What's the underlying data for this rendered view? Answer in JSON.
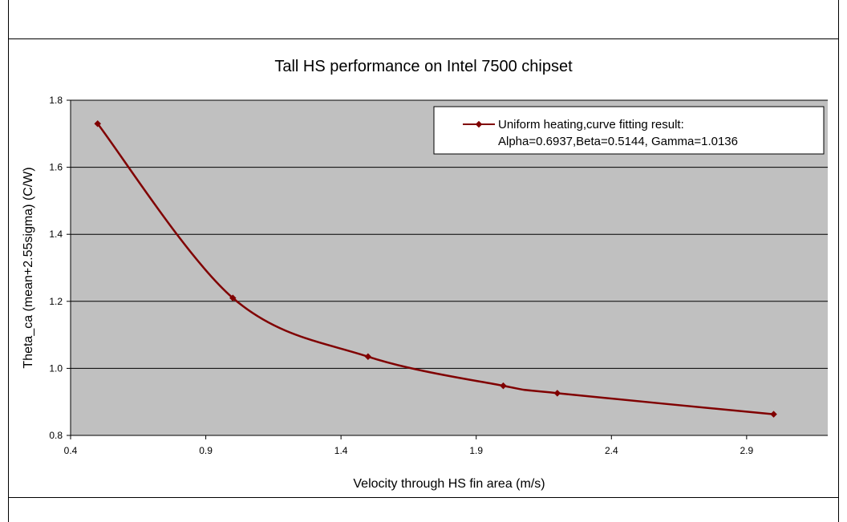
{
  "chart_data": {
    "type": "line",
    "title": "Tall HS performance on Intel 7500 chipset",
    "xlabel": "Velocity through HS fin area  (m/s)",
    "ylabel": "Theta_ca  (mean+2.55sigma) (C/W)",
    "xlim": [
      0.4,
      3.2
    ],
    "ylim": [
      0.8,
      1.8
    ],
    "x_ticks": [
      "0.4",
      "0.9",
      "1.4",
      "1.9",
      "2.4",
      "2.9"
    ],
    "y_ticks": [
      "0.8",
      "1.0",
      "1.2",
      "1.4",
      "1.6",
      "1.8"
    ],
    "grid": "horizontal",
    "legend_position": "top-right",
    "plot_background": "#c0c0c0",
    "series": [
      {
        "name": "Uniform heating,curve fitting result:",
        "name_line2": "Alpha=0.6937,Beta=0.5144, Gamma=1.0136",
        "color": "#800000",
        "x": [
          0.5,
          1.0,
          1.5,
          2.0,
          2.2,
          3.0
        ],
        "y": [
          1.73,
          1.21,
          1.035,
          0.948,
          0.926,
          0.863
        ]
      }
    ]
  }
}
